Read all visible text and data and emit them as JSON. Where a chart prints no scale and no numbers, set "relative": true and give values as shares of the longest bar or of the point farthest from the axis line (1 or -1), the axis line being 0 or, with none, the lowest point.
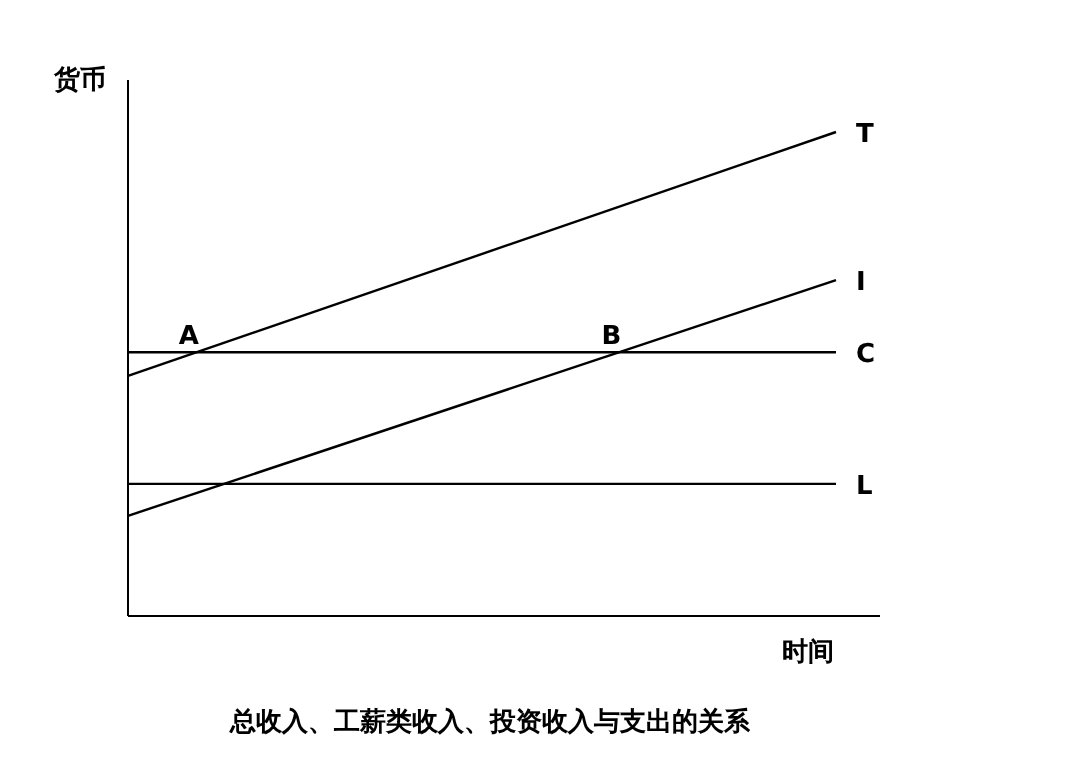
{
  "chart_data": {
    "type": "line",
    "title": "总收入、工薪类收入、投资收入与支出的关系",
    "xlabel": "时间",
    "ylabel": "货币",
    "relative": true,
    "categories": [
      null,
      null
    ],
    "series": [
      {
        "name": "T",
        "color": "#000000",
        "values": [
          0.496,
          1.0
        ]
      },
      {
        "name": "I",
        "color": "#000000",
        "values": [
          0.207,
          0.694
        ]
      },
      {
        "name": "C",
        "color": "#000000",
        "values": [
          0.545,
          0.545
        ]
      },
      {
        "name": "L",
        "color": "#000000",
        "values": [
          0.273,
          0.273
        ]
      }
    ],
    "annotations": [
      {
        "text": "A",
        "y": 0.545
      },
      {
        "text": "B",
        "y": 0.545
      }
    ]
  }
}
